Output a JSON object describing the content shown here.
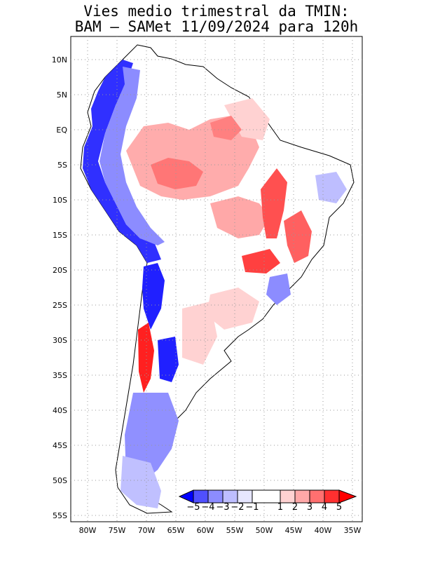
{
  "title_line1": "Vies medio trimestral da TMIN:",
  "title_line2": "BAM – SAMet 11/09/2024  para 120h",
  "map": {
    "lat_ticks": [
      "10N",
      "5N",
      "EQ",
      "5S",
      "10S",
      "15S",
      "20S",
      "25S",
      "30S",
      "35S",
      "40S",
      "45S",
      "50S",
      "55S"
    ],
    "lon_ticks": [
      "80W",
      "75W",
      "70W",
      "65W",
      "60W",
      "55W",
      "50W",
      "45W",
      "40W",
      "35W"
    ],
    "grid": true,
    "lat_range": [
      -55.5,
      13.5
    ],
    "lon_range": [
      -82.5,
      -35
    ]
  },
  "colorbar": {
    "labels": [
      "−5",
      "−4",
      "−3",
      "−2",
      "−1",
      "1",
      "2",
      "3",
      "4",
      "5"
    ],
    "colors": [
      "#0000ff",
      "#5050ff",
      "#8c8cff",
      "#bebeff",
      "#e6e6ff",
      "#ffffff",
      "#ffd2d2",
      "#ffa8a8",
      "#ff7070",
      "#ff3030",
      "#ff0000"
    ]
  }
}
